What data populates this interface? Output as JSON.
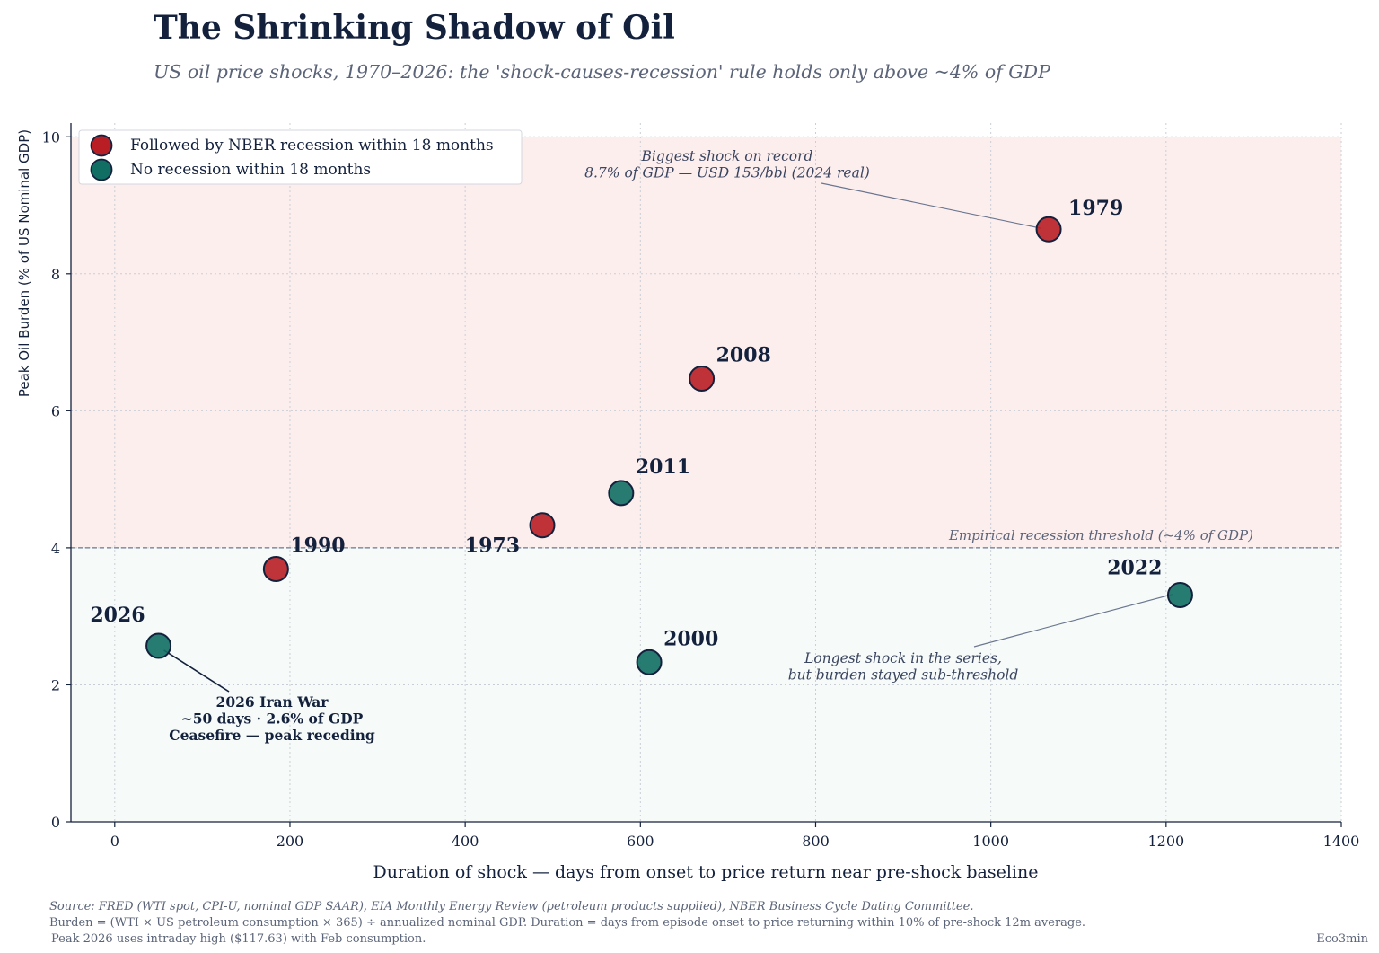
{
  "title": "The Shrinking Shadow of Oil",
  "subtitle": "US oil price shocks, 1970–2026: the 'shock-causes-recession' rule holds only above ~4% of GDP",
  "colors": {
    "recession": "#b81e24",
    "no_recession": "#116e63",
    "ink": "#14213d",
    "muted": "#5b6478",
    "upper_zone": "#fdeeee",
    "lower_zone": "#f6fbf9"
  },
  "chart_data": {
    "type": "scatter",
    "xlabel": "Duration of shock — days from onset to price return near pre-shock baseline",
    "ylabel": "Peak Oil Burden (% of US Nominal GDP)",
    "xlim": [
      -50,
      1400
    ],
    "ylim": [
      0,
      10.2
    ],
    "x_ticks": [
      0,
      200,
      400,
      600,
      800,
      1000,
      1200,
      1400
    ],
    "y_ticks": [
      0,
      2,
      4,
      6,
      8,
      10
    ],
    "grid": true,
    "legend_position": "top-left",
    "series": [
      {
        "name": "Followed by NBER recession within 18 months",
        "color_key": "recession"
      },
      {
        "name": "No recession within 18 months",
        "color_key": "no_recession"
      }
    ],
    "points": [
      {
        "label": "1979",
        "x": 1066,
        "y": 8.65,
        "series": 0
      },
      {
        "label": "2008",
        "x": 670,
        "y": 6.47,
        "series": 0
      },
      {
        "label": "2011",
        "x": 578,
        "y": 4.8,
        "series": 1
      },
      {
        "label": "1973",
        "x": 488,
        "y": 4.33,
        "series": 0
      },
      {
        "label": "1990",
        "x": 184,
        "y": 3.69,
        "series": 0
      },
      {
        "label": "2026",
        "x": 50,
        "y": 2.57,
        "series": 1
      },
      {
        "label": "2000",
        "x": 610,
        "y": 2.33,
        "series": 1
      },
      {
        "label": "2022",
        "x": 1216,
        "y": 3.31,
        "series": 1
      }
    ],
    "threshold": {
      "y": 4,
      "label": "Empirical recession threshold (~4% of GDP)"
    },
    "annotations": [
      {
        "lines": [
          "Biggest shock on record",
          "8.7% of GDP — USD 153/bbl (2024 real)"
        ],
        "style": "italic",
        "target": "1979"
      },
      {
        "lines": [
          "Longest shock in the series,",
          "but burden stayed sub-threshold"
        ],
        "style": "italic",
        "target": "2022"
      },
      {
        "lines": [
          "2026 Iran War",
          "~50 days · 2.6% of GDP",
          "Ceasefire — peak receding"
        ],
        "style": "bold",
        "target": "2026"
      }
    ]
  },
  "footer": {
    "source": "Source: FRED (WTI spot, CPI-U, nominal GDP SAAR), EIA Monthly Energy Review (petroleum products supplied), NBER Business Cycle Dating Committee.",
    "method": "Burden = (WTI × US petroleum consumption × 365) ÷ annualized nominal GDP.  Duration = days from episode onset to price returning within 10% of pre-shock 12m average.",
    "note": "Peak 2026 uses intraday high ($117.63) with Feb consumption.",
    "brand": "Eco3min"
  }
}
